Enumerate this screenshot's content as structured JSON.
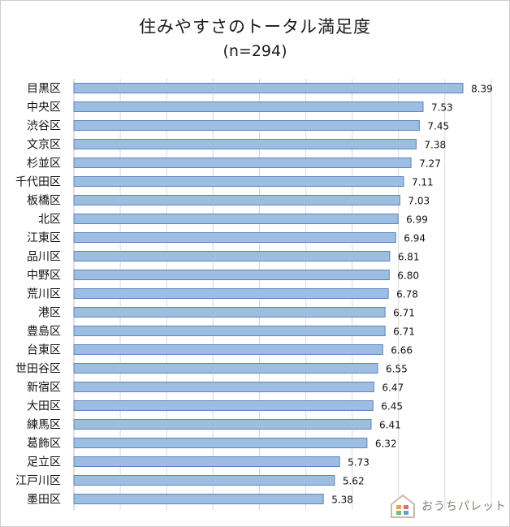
{
  "chart_data": {
    "type": "bar",
    "orientation": "horizontal",
    "title": "住みやすさのトータル満足度",
    "subtitle": "(n=294)",
    "xlabel": "",
    "ylabel": "",
    "xlim": [
      0,
      9
    ],
    "grid": true,
    "legend": "none",
    "categories": [
      "目黒区",
      "中央区",
      "渋谷区",
      "文京区",
      "杉並区",
      "千代田区",
      "板橋区",
      "北区",
      "江東区",
      "品川区",
      "中野区",
      "荒川区",
      "港区",
      "豊島区",
      "台東区",
      "世田谷区",
      "新宿区",
      "大田区",
      "練馬区",
      "葛飾区",
      "足立区",
      "江戸川区",
      "墨田区"
    ],
    "values": [
      8.39,
      7.53,
      7.45,
      7.38,
      7.27,
      7.11,
      7.03,
      6.99,
      6.94,
      6.81,
      6.8,
      6.78,
      6.71,
      6.71,
      6.66,
      6.55,
      6.47,
      6.45,
      6.41,
      6.32,
      5.73,
      5.62,
      5.38
    ],
    "value_labels": [
      "8.39",
      "7.53",
      "7.45",
      "7.38",
      "7.27",
      "7.11",
      "7.03",
      "6.99",
      "6.94",
      "6.81",
      "6.80",
      "6.78",
      "6.71",
      "6.71",
      "6.66",
      "6.55",
      "6.47",
      "6.45",
      "6.41",
      "6.32",
      "5.73",
      "5.62",
      "5.38"
    ],
    "colors": {
      "bar_fill": "#9dbde3",
      "bar_stroke": "#5a86bf",
      "grid": "#d9d9d9"
    }
  },
  "watermark": {
    "text": "おうちパレット",
    "icon": "house-icon"
  }
}
